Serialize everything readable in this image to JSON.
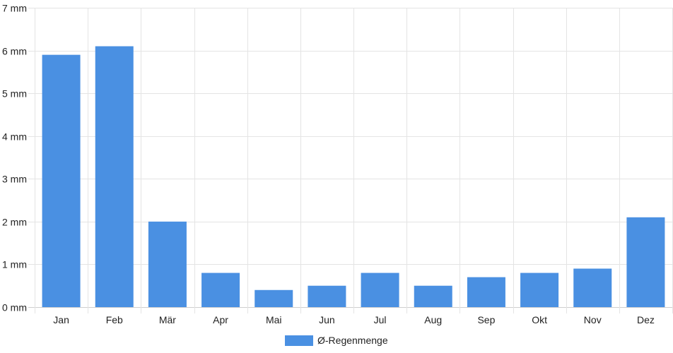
{
  "chart_data": {
    "type": "bar",
    "categories": [
      "Jan",
      "Feb",
      "Mär",
      "Apr",
      "Mai",
      "Jun",
      "Jul",
      "Aug",
      "Sep",
      "Okt",
      "Nov",
      "Dez"
    ],
    "series": [
      {
        "name": "Ø-Regenmenge",
        "values": [
          5.9,
          6.1,
          2.0,
          0.8,
          0.4,
          0.5,
          0.8,
          0.5,
          0.7,
          0.8,
          0.9,
          2.1
        ],
        "color": "#4a90e2"
      }
    ],
    "y_unit": "mm",
    "y_ticks": [
      0,
      1,
      2,
      3,
      4,
      5,
      6,
      7
    ],
    "ylim": [
      0,
      7
    ],
    "grid": true,
    "legend_position": "bottom"
  }
}
